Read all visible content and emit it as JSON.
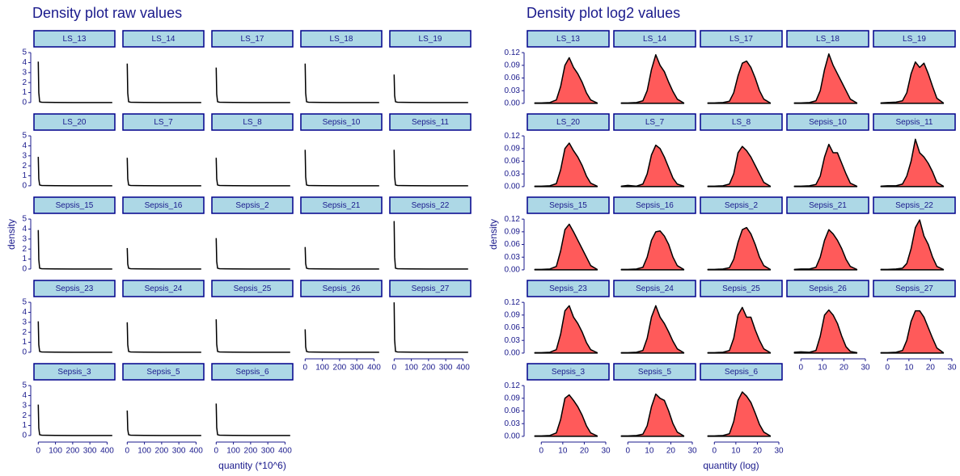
{
  "chart_data": [
    {
      "type": "line",
      "title": "Density plot raw values",
      "x_label": "quantity (*10^6)",
      "y_label": "density",
      "line_color": "#000000",
      "x": [
        0,
        3,
        8,
        20,
        50,
        100,
        200,
        300,
        400,
        430
      ],
      "xlim": [
        -25,
        445
      ],
      "xticks": [
        0,
        100,
        200,
        300,
        400
      ],
      "ylim": [
        -0.25,
        5.25
      ],
      "yticks": [
        0,
        1,
        2,
        3,
        4,
        5
      ],
      "series": [
        {
          "name": "LS_13",
          "values": [
            4.1,
            1.0,
            0.08,
            0.03,
            0.02,
            0.01,
            0.005,
            0.003,
            0.002,
            0.001
          ]
        },
        {
          "name": "LS_14",
          "values": [
            3.9,
            0.95,
            0.08,
            0.03,
            0.02,
            0.01,
            0.005,
            0.003,
            0.002,
            0.001
          ]
        },
        {
          "name": "LS_17",
          "values": [
            3.5,
            0.85,
            0.08,
            0.03,
            0.02,
            0.01,
            0.005,
            0.003,
            0.002,
            0.001
          ]
        },
        {
          "name": "LS_18",
          "values": [
            3.9,
            0.95,
            0.08,
            0.03,
            0.02,
            0.01,
            0.005,
            0.003,
            0.002,
            0.001
          ]
        },
        {
          "name": "LS_19",
          "values": [
            2.8,
            0.7,
            0.08,
            0.03,
            0.02,
            0.01,
            0.005,
            0.003,
            0.002,
            0.001
          ]
        },
        {
          "name": "LS_20",
          "values": [
            2.9,
            0.7,
            0.08,
            0.03,
            0.02,
            0.01,
            0.005,
            0.003,
            0.002,
            0.001
          ]
        },
        {
          "name": "LS_7",
          "values": [
            2.8,
            0.7,
            0.08,
            0.03,
            0.02,
            0.01,
            0.005,
            0.003,
            0.002,
            0.001
          ]
        },
        {
          "name": "LS_8",
          "values": [
            2.8,
            0.7,
            0.08,
            0.03,
            0.02,
            0.01,
            0.005,
            0.003,
            0.002,
            0.001
          ]
        },
        {
          "name": "Sepsis_10",
          "values": [
            3.6,
            0.9,
            0.08,
            0.03,
            0.02,
            0.01,
            0.005,
            0.003,
            0.002,
            0.001
          ]
        },
        {
          "name": "Sepsis_11",
          "values": [
            3.6,
            0.9,
            0.08,
            0.03,
            0.02,
            0.01,
            0.005,
            0.003,
            0.002,
            0.001
          ]
        },
        {
          "name": "Sepsis_15",
          "values": [
            3.9,
            0.95,
            0.08,
            0.03,
            0.02,
            0.01,
            0.005,
            0.003,
            0.002,
            0.001
          ]
        },
        {
          "name": "Sepsis_16",
          "values": [
            2.1,
            0.5,
            0.08,
            0.03,
            0.02,
            0.01,
            0.005,
            0.003,
            0.002,
            0.001
          ]
        },
        {
          "name": "Sepsis_2",
          "values": [
            3.1,
            0.75,
            0.08,
            0.03,
            0.02,
            0.01,
            0.005,
            0.003,
            0.002,
            0.001
          ]
        },
        {
          "name": "Sepsis_21",
          "values": [
            2.2,
            0.55,
            0.08,
            0.03,
            0.02,
            0.01,
            0.005,
            0.003,
            0.002,
            0.001
          ]
        },
        {
          "name": "Sepsis_22",
          "values": [
            4.8,
            1.2,
            0.08,
            0.03,
            0.02,
            0.01,
            0.005,
            0.003,
            0.002,
            0.001
          ]
        },
        {
          "name": "Sepsis_23",
          "values": [
            3.1,
            0.75,
            0.08,
            0.03,
            0.02,
            0.01,
            0.005,
            0.003,
            0.002,
            0.001
          ]
        },
        {
          "name": "Sepsis_24",
          "values": [
            3.0,
            0.75,
            0.08,
            0.03,
            0.02,
            0.01,
            0.005,
            0.003,
            0.002,
            0.001
          ]
        },
        {
          "name": "Sepsis_25",
          "values": [
            3.3,
            0.8,
            0.08,
            0.03,
            0.02,
            0.01,
            0.005,
            0.003,
            0.002,
            0.001
          ]
        },
        {
          "name": "Sepsis_26",
          "values": [
            2.3,
            0.55,
            0.08,
            0.03,
            0.02,
            0.01,
            0.005,
            0.003,
            0.002,
            0.001
          ]
        },
        {
          "name": "Sepsis_27",
          "values": [
            5.0,
            1.25,
            0.08,
            0.03,
            0.02,
            0.01,
            0.005,
            0.003,
            0.002,
            0.001
          ]
        },
        {
          "name": "Sepsis_3",
          "values": [
            3.1,
            0.75,
            0.08,
            0.03,
            0.02,
            0.01,
            0.005,
            0.003,
            0.002,
            0.001
          ]
        },
        {
          "name": "Sepsis_5",
          "values": [
            2.5,
            0.6,
            0.08,
            0.03,
            0.02,
            0.01,
            0.005,
            0.003,
            0.002,
            0.001
          ]
        },
        {
          "name": "Sepsis_6",
          "values": [
            3.2,
            0.8,
            0.08,
            0.03,
            0.02,
            0.01,
            0.005,
            0.003,
            0.002,
            0.001
          ]
        }
      ]
    },
    {
      "type": "area",
      "title": "Density plot log2 values",
      "x_label": "quantity (log)",
      "y_label": "density",
      "line_color": "#000000",
      "fill_color": "#ff5a5a",
      "x": [
        -3,
        0,
        4,
        7,
        9,
        11,
        13,
        15,
        17,
        19,
        21,
        23,
        26
      ],
      "xlim": [
        -6.5,
        31.5
      ],
      "xticks": [
        0,
        10,
        20,
        30
      ],
      "ylim": [
        -0.004,
        0.126
      ],
      "yticks": [
        {
          "value": 0,
          "label": "0.00"
        },
        {
          "value": 0.03,
          "label": "0.03"
        },
        {
          "value": 0.06,
          "label": "0.06"
        },
        {
          "value": 0.09,
          "label": "0.09"
        },
        {
          "value": 0.12,
          "label": "0.12"
        }
      ],
      "series": [
        {
          "name": "LS_13",
          "values": [
            0.001,
            0.001,
            0.002,
            0.008,
            0.04,
            0.09,
            0.108,
            0.085,
            0.07,
            0.05,
            0.025,
            0.008,
            0.001
          ]
        },
        {
          "name": "LS_14",
          "values": [
            0.001,
            0.001,
            0.002,
            0.006,
            0.03,
            0.08,
            0.115,
            0.09,
            0.075,
            0.05,
            0.028,
            0.01,
            0.001
          ]
        },
        {
          "name": "LS_17",
          "values": [
            0.001,
            0.001,
            0.002,
            0.005,
            0.025,
            0.065,
            0.095,
            0.1,
            0.085,
            0.06,
            0.03,
            0.01,
            0.001
          ]
        },
        {
          "name": "LS_18",
          "values": [
            0.001,
            0.001,
            0.002,
            0.006,
            0.03,
            0.08,
            0.117,
            0.09,
            0.07,
            0.05,
            0.03,
            0.01,
            0.001
          ]
        },
        {
          "name": "LS_19",
          "values": [
            0.001,
            0.002,
            0.003,
            0.006,
            0.025,
            0.07,
            0.098,
            0.085,
            0.095,
            0.07,
            0.04,
            0.012,
            0.001
          ]
        },
        {
          "name": "LS_20",
          "values": [
            0.001,
            0.001,
            0.002,
            0.007,
            0.04,
            0.09,
            0.103,
            0.085,
            0.07,
            0.05,
            0.025,
            0.008,
            0.001
          ]
        },
        {
          "name": "LS_7",
          "values": [
            0.001,
            0.003,
            0.001,
            0.006,
            0.03,
            0.075,
            0.098,
            0.09,
            0.07,
            0.045,
            0.02,
            0.006,
            0.001
          ]
        },
        {
          "name": "LS_8",
          "values": [
            0.001,
            0.001,
            0.002,
            0.006,
            0.03,
            0.08,
            0.095,
            0.085,
            0.07,
            0.05,
            0.03,
            0.01,
            0.001
          ]
        },
        {
          "name": "Sepsis_10",
          "values": [
            0.001,
            0.001,
            0.002,
            0.005,
            0.025,
            0.07,
            0.1,
            0.08,
            0.08,
            0.055,
            0.03,
            0.008,
            0.001
          ]
        },
        {
          "name": "Sepsis_11",
          "values": [
            0.001,
            0.002,
            0.002,
            0.006,
            0.025,
            0.06,
            0.112,
            0.08,
            0.07,
            0.055,
            0.035,
            0.01,
            0.001
          ]
        },
        {
          "name": "Sepsis_15",
          "values": [
            0.001,
            0.001,
            0.002,
            0.008,
            0.045,
            0.095,
            0.108,
            0.09,
            0.07,
            0.05,
            0.03,
            0.01,
            0.001
          ]
        },
        {
          "name": "Sepsis_16",
          "values": [
            0.001,
            0.001,
            0.002,
            0.006,
            0.03,
            0.07,
            0.09,
            0.092,
            0.08,
            0.06,
            0.03,
            0.01,
            0.001
          ]
        },
        {
          "name": "Sepsis_2",
          "values": [
            0.001,
            0.001,
            0.002,
            0.005,
            0.025,
            0.065,
            0.095,
            0.1,
            0.085,
            0.06,
            0.03,
            0.01,
            0.001
          ]
        },
        {
          "name": "Sepsis_21",
          "values": [
            0.001,
            0.002,
            0.002,
            0.006,
            0.03,
            0.07,
            0.095,
            0.085,
            0.07,
            0.05,
            0.025,
            0.008,
            0.001
          ]
        },
        {
          "name": "Sepsis_22",
          "values": [
            0.001,
            0.001,
            0.002,
            0.004,
            0.015,
            0.05,
            0.1,
            0.118,
            0.08,
            0.06,
            0.03,
            0.008,
            0.001
          ]
        },
        {
          "name": "Sepsis_23",
          "values": [
            0.001,
            0.001,
            0.002,
            0.008,
            0.045,
            0.1,
            0.112,
            0.085,
            0.07,
            0.05,
            0.025,
            0.008,
            0.001
          ]
        },
        {
          "name": "Sepsis_24",
          "values": [
            0.001,
            0.001,
            0.002,
            0.006,
            0.035,
            0.085,
            0.112,
            0.085,
            0.07,
            0.05,
            0.028,
            0.01,
            0.001
          ]
        },
        {
          "name": "Sepsis_25",
          "values": [
            0.001,
            0.001,
            0.002,
            0.006,
            0.035,
            0.09,
            0.108,
            0.085,
            0.085,
            0.055,
            0.03,
            0.01,
            0.001
          ]
        },
        {
          "name": "Sepsis_26",
          "values": [
            0.002,
            0.003,
            0.002,
            0.006,
            0.04,
            0.09,
            0.102,
            0.09,
            0.07,
            0.04,
            0.015,
            0.004,
            0.001
          ]
        },
        {
          "name": "Sepsis_27",
          "values": [
            0.001,
            0.001,
            0.002,
            0.006,
            0.03,
            0.075,
            0.1,
            0.1,
            0.085,
            0.06,
            0.035,
            0.012,
            0.001
          ]
        },
        {
          "name": "Sepsis_3",
          "values": [
            0.001,
            0.001,
            0.002,
            0.008,
            0.04,
            0.09,
            0.098,
            0.085,
            0.07,
            0.05,
            0.025,
            0.008,
            0.001
          ]
        },
        {
          "name": "Sepsis_5",
          "values": [
            0.001,
            0.001,
            0.002,
            0.005,
            0.025,
            0.07,
            0.1,
            0.09,
            0.085,
            0.06,
            0.03,
            0.01,
            0.001
          ]
        },
        {
          "name": "Sepsis_6",
          "values": [
            0.001,
            0.001,
            0.002,
            0.006,
            0.035,
            0.085,
            0.105,
            0.095,
            0.08,
            0.055,
            0.028,
            0.01,
            0.001
          ]
        }
      ]
    }
  ]
}
